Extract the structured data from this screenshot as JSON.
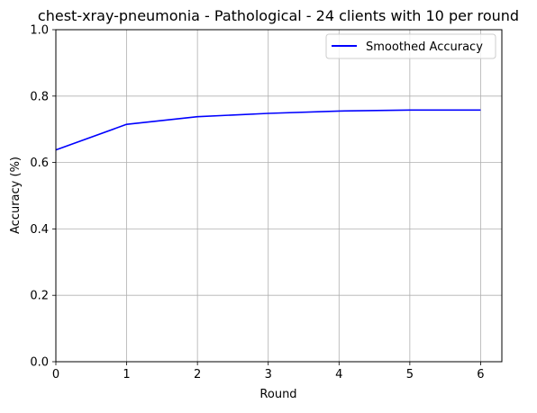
{
  "chart_data": {
    "type": "line",
    "title": "chest-xray-pneumonia - Pathological - 24 clients with 10 per round",
    "xlabel": "Round",
    "ylabel": "Accuracy (%)",
    "xlim": [
      0,
      6.3
    ],
    "ylim": [
      0,
      1.0
    ],
    "xticks": [
      0,
      1,
      2,
      3,
      4,
      5,
      6
    ],
    "xtick_labels": [
      "0",
      "1",
      "2",
      "3",
      "4",
      "5",
      "6"
    ],
    "yticks": [
      0,
      0.2,
      0.4,
      0.6,
      0.8,
      1.0
    ],
    "ytick_labels": [
      "0.0",
      "0.2",
      "0.4",
      "0.6",
      "0.8",
      "1.0"
    ],
    "grid": true,
    "legend_position": "top-right",
    "series": [
      {
        "name": "Smoothed Accuracy",
        "color": "#0000ff",
        "x": [
          0,
          1,
          2,
          3,
          4,
          5,
          6
        ],
        "y": [
          0.638,
          0.715,
          0.738,
          0.748,
          0.755,
          0.758,
          0.758
        ]
      }
    ]
  }
}
